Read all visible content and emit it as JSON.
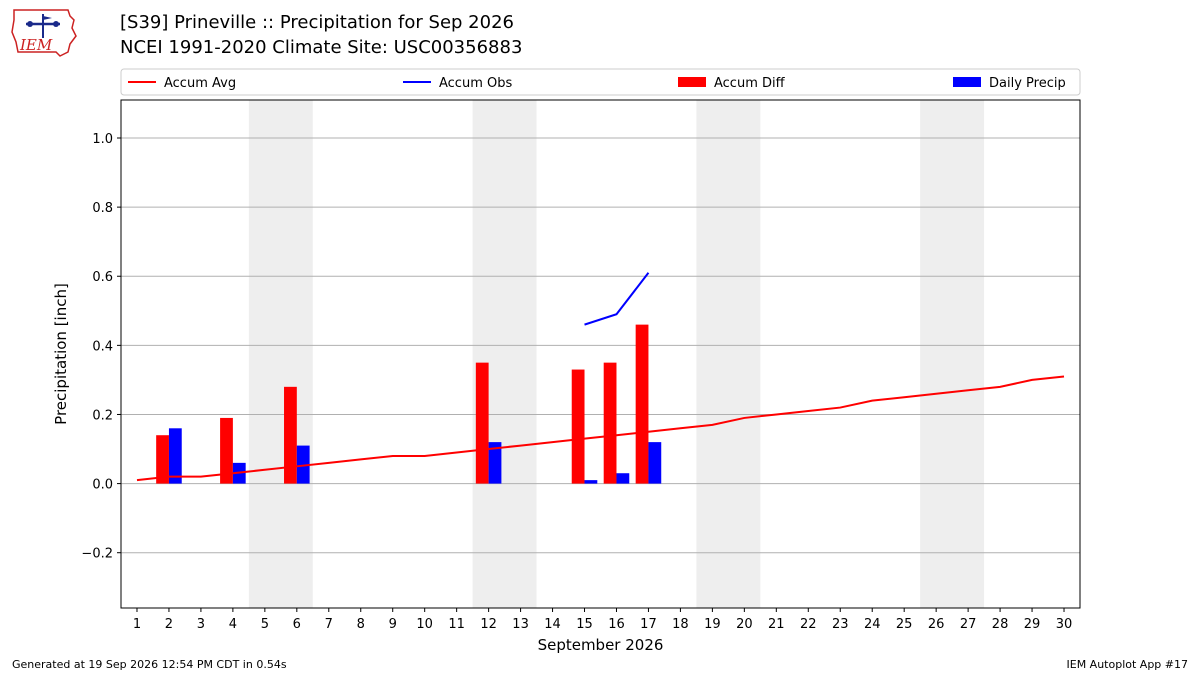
{
  "header": {
    "title": "[S39] Prineville :: Precipitation for Sep 2026",
    "subtitle": "NCEI 1991-2020 Climate Site: USC00356883",
    "logo_text": "IEM"
  },
  "footer": {
    "generated": "Generated at 19 Sep 2026 12:54 PM CDT in 0.54s",
    "app": "IEM Autoplot App #17"
  },
  "chart_data": {
    "type": "bar",
    "title": "[S39] Prineville :: Precipitation for Sep 2026",
    "xlabel": "September 2026",
    "ylabel": "Precipitation [inch]",
    "x": [
      1,
      2,
      3,
      4,
      5,
      6,
      7,
      8,
      9,
      10,
      11,
      12,
      13,
      14,
      15,
      16,
      17,
      18,
      19,
      20,
      21,
      22,
      23,
      24,
      25,
      26,
      27,
      28,
      29,
      30
    ],
    "xlim": [
      0.5,
      30.5
    ],
    "ylim": [
      -0.36,
      1.11
    ],
    "yticks": [
      -0.2,
      0.0,
      0.2,
      0.4,
      0.6,
      0.8,
      1.0
    ],
    "ytick_labels": [
      "−0.2",
      "0.0",
      "0.2",
      "0.4",
      "0.6",
      "0.8",
      "1.0"
    ],
    "grid": "horizontal",
    "weekend_shading": [
      [
        4.5,
        6.5
      ],
      [
        11.5,
        13.5
      ],
      [
        18.5,
        20.5
      ],
      [
        25.5,
        27.5
      ]
    ],
    "legend_position": "top",
    "series": [
      {
        "name": "Accum Avg",
        "kind": "line",
        "color": "#ff0000",
        "x": [
          1,
          2,
          3,
          4,
          5,
          6,
          7,
          8,
          9,
          10,
          11,
          12,
          13,
          14,
          15,
          16,
          17,
          18,
          19,
          20,
          21,
          22,
          23,
          24,
          25,
          26,
          27,
          28,
          29,
          30
        ],
        "values": [
          0.01,
          0.02,
          0.02,
          0.03,
          0.04,
          0.05,
          0.06,
          0.07,
          0.08,
          0.08,
          0.09,
          0.1,
          0.11,
          0.12,
          0.13,
          0.14,
          0.15,
          0.16,
          0.17,
          0.19,
          0.2,
          0.21,
          0.22,
          0.24,
          0.25,
          0.26,
          0.27,
          0.28,
          0.3,
          0.31
        ]
      },
      {
        "name": "Accum Obs",
        "kind": "line",
        "color": "#0000ff",
        "x": [
          15,
          16,
          17
        ],
        "values": [
          0.46,
          0.49,
          0.61
        ]
      },
      {
        "name": "Accum Diff",
        "kind": "bar",
        "color": "#ff0000",
        "offset": "left",
        "x": [
          2,
          4,
          6,
          12,
          15,
          16,
          17
        ],
        "values": [
          0.14,
          0.19,
          0.28,
          0.35,
          0.33,
          0.35,
          0.46
        ]
      },
      {
        "name": "Daily Precip",
        "kind": "bar",
        "color": "#0000ff",
        "offset": "right",
        "x": [
          2,
          4,
          6,
          12,
          15,
          16,
          17
        ],
        "values": [
          0.16,
          0.06,
          0.11,
          0.12,
          0.01,
          0.03,
          0.12
        ]
      }
    ]
  }
}
